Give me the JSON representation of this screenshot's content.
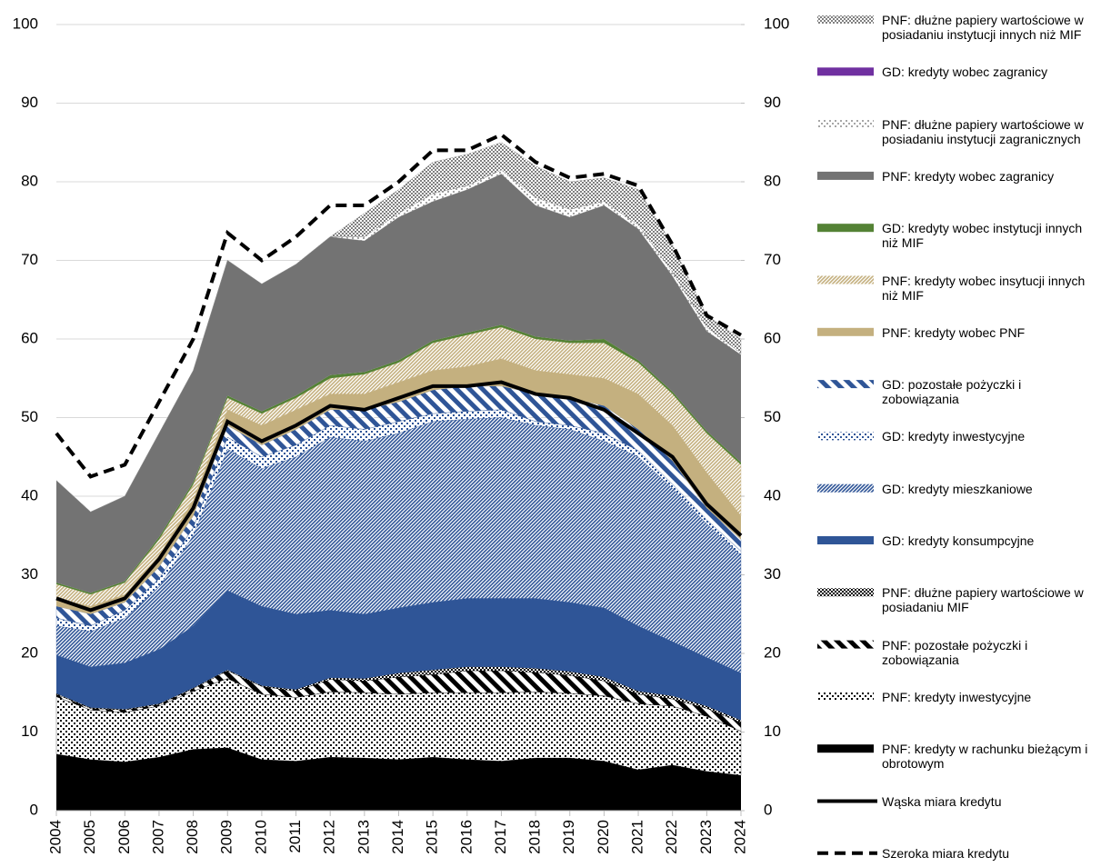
{
  "chart_data": {
    "type": "stacked-area",
    "x": [
      2004,
      2005,
      2006,
      2007,
      2008,
      2009,
      2010,
      2011,
      2012,
      2013,
      2014,
      2015,
      2016,
      2017,
      2018,
      2019,
      2020,
      2021,
      2022,
      2023,
      2024
    ],
    "xlim": [
      2004,
      2024
    ],
    "xticks": [
      2004,
      2005,
      2006,
      2007,
      2008,
      2009,
      2010,
      2011,
      2012,
      2013,
      2014,
      2015,
      2016,
      2017,
      2018,
      2019,
      2020,
      2021,
      2022,
      2023,
      2024
    ],
    "ylim": [
      0,
      100
    ],
    "yticks": [
      0,
      10,
      20,
      30,
      40,
      50,
      60,
      70,
      80,
      90,
      100
    ],
    "y2lim": [
      0,
      100
    ],
    "y2ticks": [
      0,
      10,
      20,
      30,
      40,
      50,
      60,
      70,
      80,
      90,
      100
    ],
    "grid": true,
    "series": [
      {
        "name": "PNF: kredyty w rachunku bieżącym i obrotowym",
        "color": "#000000",
        "pattern": "solid",
        "values": [
          7.2,
          6.5,
          6.2,
          6.8,
          7.8,
          8,
          6.5,
          6.3,
          6.8,
          6.7,
          6.5,
          6.8,
          6.5,
          6.3,
          6.7,
          6.7,
          6.3,
          5.2,
          5.8,
          5,
          4.5
        ]
      },
      {
        "name": "PNF: kredyty inwestycyjne",
        "color": "#000000",
        "pattern": "dots",
        "values": [
          7.3,
          6.3,
          6.3,
          6.5,
          7.4,
          8.8,
          8.3,
          8.1,
          8.3,
          8.3,
          8.3,
          8.2,
          8.5,
          8.7,
          8.4,
          8.2,
          8.3,
          8.4,
          7.5,
          7,
          5.6
        ]
      },
      {
        "name": "PNF: pozostałe pożyczki i zobowiązania",
        "color": "#000000",
        "pattern": "stripes",
        "values": [
          0.3,
          0.2,
          0.3,
          0.2,
          0.3,
          1,
          1,
          0.8,
          1.6,
          1.5,
          2.2,
          2.3,
          2.8,
          2.8,
          2.5,
          2.3,
          1.9,
          1.2,
          0.9,
          1,
          1.1
        ]
      },
      {
        "name": "PNF: dłużne papiery wartościowe w posiadaniu MIF",
        "color": "#000000",
        "pattern": "checker",
        "values": [
          0.1,
          0.1,
          0.1,
          0.1,
          0.1,
          0.1,
          0.1,
          0.2,
          0.2,
          0.3,
          0.5,
          0.6,
          0.5,
          0.5,
          0.5,
          0.5,
          0.5,
          0.4,
          0.4,
          0.3,
          0.3
        ]
      },
      {
        "name": "GD: kredyty konsumpcyjne",
        "color": "#2f5597",
        "pattern": "solid",
        "values": [
          4.9,
          5.2,
          5.9,
          6.9,
          7.9,
          10.1,
          10.1,
          9.6,
          8.6,
          8.2,
          8.3,
          8.6,
          8.7,
          8.7,
          8.9,
          8.8,
          8.8,
          8.3,
          6.9,
          6.2,
          6
        ]
      },
      {
        "name": "GD: kredyty mieszkaniowe",
        "color": "#2f5597",
        "pattern": "fine-stripes",
        "values": [
          3.7,
          4.5,
          5.7,
          8,
          11.5,
          18,
          17.5,
          20,
          22,
          22,
          22.2,
          23,
          22.8,
          23,
          22,
          22,
          21.2,
          21.5,
          19.5,
          17,
          15
        ]
      },
      {
        "name": "GD: kredyty inwestycyjne",
        "color": "#2f5597",
        "pattern": "dots",
        "values": [
          1,
          0.7,
          1,
          1,
          1,
          1.5,
          1.5,
          1.5,
          1.5,
          1.5,
          1.5,
          1,
          1,
          1,
          0.5,
          0.5,
          1,
          0.8,
          0.5,
          0.5,
          0.5
        ]
      },
      {
        "name": "GD: pozostałe pożyczki i zobowiązania",
        "color": "#2f5597",
        "pattern": "stripes",
        "values": [
          1.5,
          1.5,
          1,
          1.5,
          1.5,
          1.5,
          1.5,
          2,
          2,
          2.5,
          2.5,
          3,
          3.2,
          3,
          3.5,
          3.5,
          3.5,
          2.7,
          3,
          1.5,
          1.5
        ]
      },
      {
        "name": "PNF: kredyty wobec PNF",
        "color": "#c4b07f",
        "pattern": "solid",
        "values": [
          1,
          1,
          1,
          1.5,
          2,
          2,
          2.5,
          2.5,
          2,
          2,
          2.5,
          2.5,
          2.5,
          3.5,
          3,
          3,
          3.5,
          4.5,
          4.5,
          4.5,
          3
        ]
      },
      {
        "name": "PNF: kredyty wobec insytucji innych niż MIF",
        "color": "#c4b07f",
        "pattern": "fine-stripes",
        "values": [
          1.8,
          1.5,
          1.5,
          2,
          2,
          1.5,
          1.5,
          1.5,
          2,
          2.5,
          2.5,
          3.5,
          4,
          4,
          4,
          4,
          4.5,
          4,
          4,
          5,
          6.5
        ]
      },
      {
        "name": "GD: kredyty wobec instytucji innych niż MIF",
        "color": "#548235",
        "pattern": "solid",
        "values": [
          0.2,
          0.2,
          0.2,
          0.3,
          0.3,
          0.3,
          0.3,
          0.3,
          0.4,
          0.3,
          0.3,
          0.3,
          0.3,
          0.3,
          0.3,
          0.3,
          0.5,
          0.3,
          0.3,
          0.3,
          0.3
        ]
      },
      {
        "name": "PNF: kredyty wobec zagranicy",
        "color": "#737373",
        "pattern": "solid",
        "values": [
          13,
          10.3,
          10.8,
          13.2,
          14.2,
          17.2,
          16.2,
          16.7,
          17.6,
          16.7,
          18.2,
          17.7,
          18.2,
          19.2,
          16.7,
          15.7,
          17,
          16.7,
          14.7,
          12.7,
          13.7
        ]
      },
      {
        "name": "PNF: dłużne papiery wartościowe w posiadaniu instytucji zagranicznych",
        "color": "#a6a6a6",
        "pattern": "dots",
        "values": [
          0,
          0,
          0,
          0,
          0,
          0,
          0,
          0,
          0,
          0.5,
          0.5,
          1,
          0.5,
          0.5,
          1,
          1,
          0.5,
          0.5,
          0.5,
          0.5,
          0.2
        ]
      },
      {
        "name": "GD: kredyty wobec zagranicy",
        "color": "#7030a0",
        "pattern": "solid",
        "values": [
          0,
          0,
          0,
          0,
          0,
          0,
          0,
          0,
          0,
          0,
          0,
          0,
          0,
          0,
          0,
          0,
          0,
          0,
          0,
          0,
          0
        ]
      },
      {
        "name": "PNF: dłużne papiery wartościowe w posiadaniu instytucji innych niż MIF",
        "color": "#808080",
        "pattern": "checker",
        "values": [
          0,
          0,
          0,
          0,
          0,
          0,
          0,
          0,
          0,
          3,
          3,
          4,
          4,
          3.5,
          4,
          3.5,
          3,
          4.5,
          3.5,
          1.5,
          1.8
        ]
      },
      {
        "name": "Wąska miara kredytu",
        "type": "line",
        "color": "#000000",
        "style": "solid",
        "values": [
          27,
          25.5,
          27,
          32,
          38.5,
          49.5,
          47,
          49,
          51.5,
          51,
          52.5,
          54,
          54,
          54.5,
          53,
          52.5,
          51,
          48,
          45,
          39,
          35
        ]
      },
      {
        "name": "Szeroka miara kredytu",
        "type": "line",
        "color": "#000000",
        "style": "dashed",
        "values": [
          48,
          42.5,
          44,
          52,
          60,
          73.5,
          70,
          73,
          77,
          77,
          80,
          84,
          84,
          86,
          82.5,
          80.5,
          81,
          79.5,
          72,
          63,
          60.5
        ]
      }
    ]
  }
}
